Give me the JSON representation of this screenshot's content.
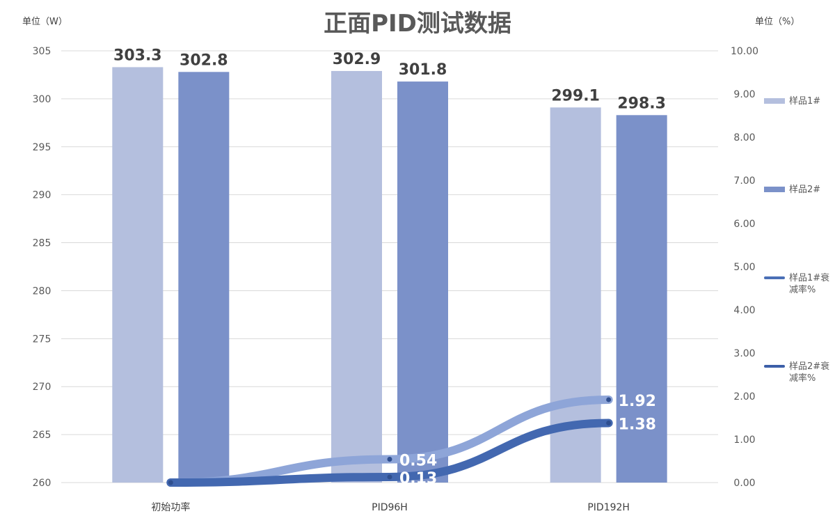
{
  "chart_data": {
    "type": "bar",
    "title": "正面PID测试数据",
    "left_unit": "单位（W）",
    "right_unit": "单位（%）",
    "categories": [
      "初始功率",
      "PID96H",
      "PID192H"
    ],
    "series": [
      {
        "name": "样品1#",
        "values": [
          303.3,
          302.9,
          299.1
        ],
        "color": "#b4bfde",
        "axis": "left",
        "kind": "bar"
      },
      {
        "name": "样品2#",
        "values": [
          302.8,
          301.8,
          298.3
        ],
        "color": "#7b91c9",
        "axis": "left",
        "kind": "bar"
      },
      {
        "name": "样品1#衰减率%",
        "values": [
          0.0,
          0.54,
          1.92
        ],
        "labels": [
          "",
          "0.54",
          "1.92"
        ],
        "color": "#8ea5d8",
        "axis": "right",
        "kind": "line"
      },
      {
        "name": "样品2#衰减率%",
        "values": [
          0.0,
          0.13,
          1.38
        ],
        "labels": [
          "",
          "0.13",
          "1.38"
        ],
        "color": "#4368b0",
        "axis": "right",
        "kind": "line"
      }
    ],
    "y_left": {
      "min": 260,
      "max": 305,
      "step": 5,
      "ticks": [
        "260",
        "265",
        "270",
        "275",
        "280",
        "285",
        "290",
        "295",
        "300",
        "305"
      ]
    },
    "y_right": {
      "min": 0,
      "max": 10,
      "step": 1,
      "ticks": [
        "0.00",
        "1.00",
        "2.00",
        "3.00",
        "4.00",
        "5.00",
        "6.00",
        "7.00",
        "8.00",
        "9.00",
        "10.00"
      ]
    },
    "grid": true,
    "legend_position": "right"
  }
}
